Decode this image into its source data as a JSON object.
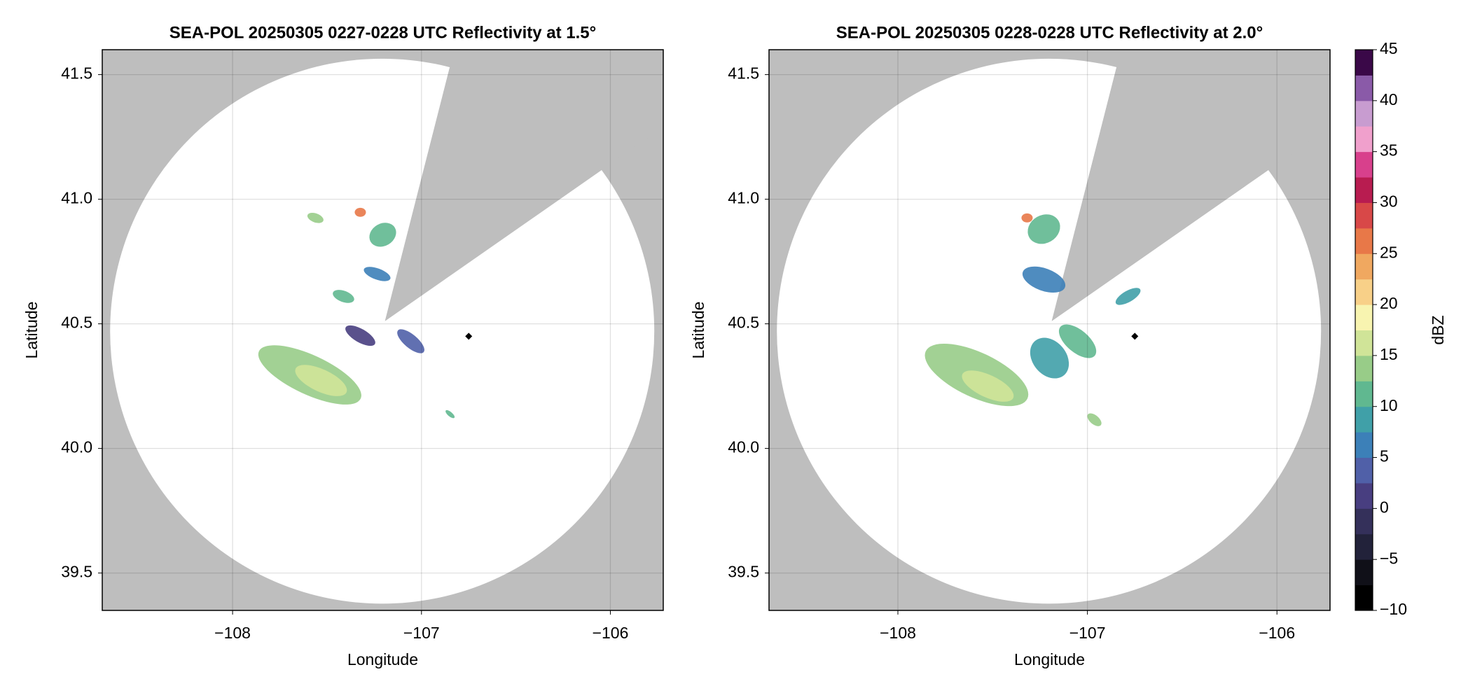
{
  "chart_data": [
    {
      "type": "radar",
      "title": "SEA-POL 20250305 0227-0228 UTC Reflectivity at 1.5°",
      "xlabel": "Longitude",
      "ylabel": "Latitude",
      "xlim": [
        -108.69,
        -105.72
      ],
      "ylim": [
        39.35,
        41.6
      ],
      "xticks": [
        {
          "value": -108,
          "label": "−108"
        },
        {
          "value": -107,
          "label": "−107"
        },
        {
          "value": -106,
          "label": "−106"
        }
      ],
      "yticks": [
        {
          "value": 39.5,
          "label": "39.5"
        },
        {
          "value": 40.0,
          "label": "40.0"
        },
        {
          "value": 40.5,
          "label": "40.5"
        },
        {
          "value": 41.0,
          "label": "41.0"
        },
        {
          "value": 41.5,
          "label": "41.5"
        }
      ],
      "grid": true,
      "marker": {
        "x": -106.75,
        "y": 40.45
      }
    },
    {
      "type": "radar",
      "title": "SEA-POL 20250305 0228-0228 UTC Reflectivity at 2.0°",
      "xlabel": "Longitude",
      "ylabel": "Latitude",
      "xlim": [
        -108.68,
        -105.72
      ],
      "ylim": [
        39.35,
        41.6
      ],
      "xticks": [
        {
          "value": -108,
          "label": "−108"
        },
        {
          "value": -107,
          "label": "−107"
        },
        {
          "value": -106,
          "label": "−106"
        }
      ],
      "yticks": [
        {
          "value": 39.5,
          "label": "39.5"
        },
        {
          "value": 40.0,
          "label": "40.0"
        },
        {
          "value": 40.5,
          "label": "40.5"
        },
        {
          "value": 41.0,
          "label": "41.0"
        },
        {
          "value": 41.5,
          "label": "41.5"
        }
      ],
      "grid": true,
      "marker": {
        "x": -106.75,
        "y": 40.45
      },
      "colorbar": {
        "label": "dBZ",
        "lim": [
          -10,
          45
        ],
        "ticks": [
          {
            "value": -10,
            "label": "−10"
          },
          {
            "value": -5,
            "label": "−5"
          },
          0,
          5,
          10,
          15,
          20,
          25,
          30,
          35,
          40,
          45
        ],
        "colors": [
          "#000000",
          "#101018",
          "#22223a",
          "#34305a",
          "#483e80",
          "#5060a8",
          "#3c80b8",
          "#40a0a8",
          "#60b890",
          "#98cc88",
          "#d0e498",
          "#f8f4b0",
          "#f8d088",
          "#f0a860",
          "#e87848",
          "#d84848",
          "#b81c50",
          "#d8408c",
          "#f0a0cc",
          "#c89cd0",
          "#8a5aa8",
          "#3a0848"
        ]
      }
    }
  ]
}
